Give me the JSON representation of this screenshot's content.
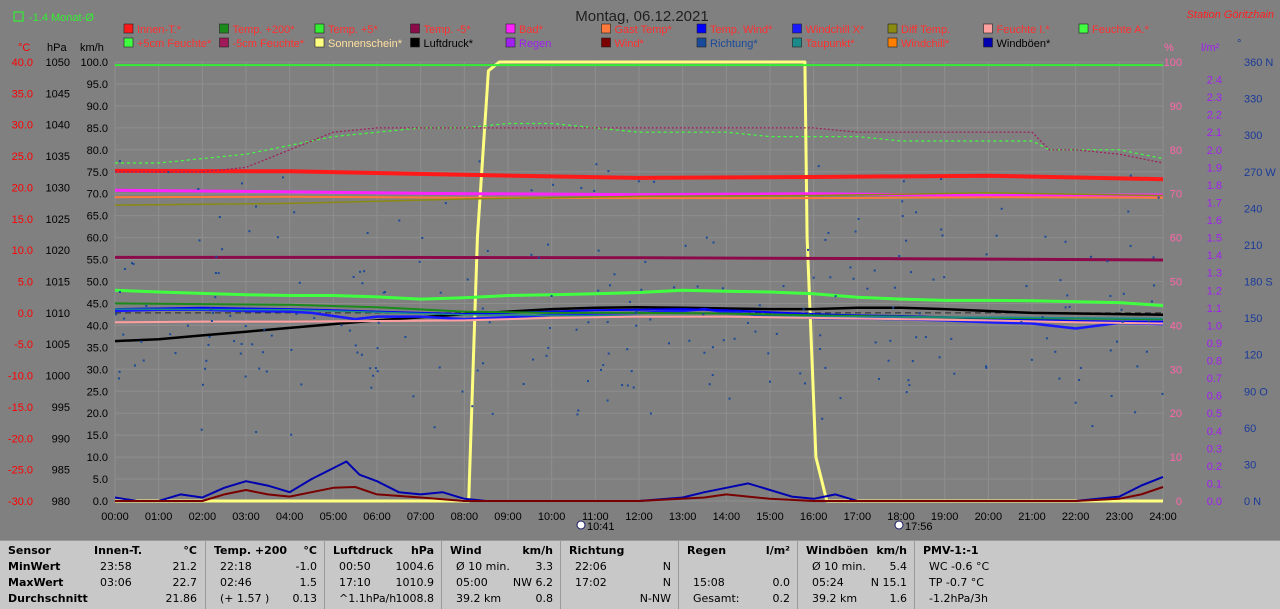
{
  "header": {
    "title": "Montag, 06.12.2021",
    "station": "Station Göritzhain",
    "monat_label": "-1.4 Monat-Ø"
  },
  "colors": {
    "background": "#808080",
    "innen": "#ff1a1a",
    "temp200": "#1a8a1a",
    "temp5": "#33ee33",
    "temp_minus5": "#8a0a4a",
    "bad": "#ff22ff",
    "gast": "#ff7a3a",
    "tempwind": "#0000ff",
    "windchillx": "#1a1aff",
    "difftemp": "#8a8a10",
    "feuchte_i": "#ffa0a0",
    "feuchte_a": "#40ff40",
    "feuchte5": "#40ff40",
    "feuchte_minus5": "#a01a5a",
    "sonnenschein": "#ffff80",
    "luftdruck": "#000000",
    "regen": "#a020f0",
    "wind": "#7a0000",
    "richtung": "#1a4a9a",
    "taupunkt": "#1a8a8a",
    "windchill": "#ff8000",
    "windboeen": "#0000b0",
    "axis_temp": "#ff0000",
    "axis_pct": "#ff66aa",
    "axis_rain": "#a020f0",
    "axis_dir": "#1a3a9a"
  },
  "legend": [
    [
      "Innen-T.*",
      "Temp. +200*",
      "Temp. +5*",
      "Temp. -5*",
      "Bad*",
      "Gast Temp*",
      "Temp. Wind*",
      "Windchill X*",
      "Diff Temp.",
      "Feuchte I.*",
      "Feuchte A.*"
    ],
    [
      "+5cm Feuchte*",
      "-5cm Feuchte*",
      "Sonnenschein*",
      "Luftdruck*",
      "Regen",
      "Wind*",
      "Richtung*",
      "Taupunkt*",
      "Windchill*",
      "Windböen*"
    ]
  ],
  "axes": {
    "left_units": [
      "°C",
      "hPa",
      "km/h"
    ],
    "right_units": [
      "%",
      "l/m²",
      "°"
    ]
  },
  "events": {
    "sunrise": "10:41",
    "sunset": "17:56"
  },
  "chart_data": {
    "type": "line",
    "title": "Montag, 06.12.2021",
    "x_ticks": [
      "00:00",
      "01:00",
      "02:00",
      "03:00",
      "04:00",
      "05:00",
      "06:00",
      "07:00",
      "08:00",
      "09:00",
      "10:00",
      "11:00",
      "12:00",
      "13:00",
      "14:00",
      "15:00",
      "16:00",
      "17:00",
      "18:00",
      "19:00",
      "20:00",
      "21:00",
      "22:00",
      "23:00",
      "24:00"
    ],
    "axes": {
      "temp_c": {
        "min": -30.0,
        "max": 40.0,
        "ticks": [
          "40.0",
          "35.0",
          "30.0",
          "25.0",
          "20.0",
          "15.0",
          "10.0",
          "5.0",
          "0.0",
          "-5.0",
          "-10.0",
          "-15.0",
          "-20.0",
          "-25.0",
          "-30.0"
        ]
      },
      "press_hpa": {
        "min": 980,
        "max": 1050,
        "ticks": [
          "1050",
          "1045",
          "1040",
          "1035",
          "1030",
          "1025",
          "1020",
          "1015",
          "1010",
          "1005",
          "1000",
          "995",
          "990",
          "985",
          "980"
        ]
      },
      "wind_kmh": {
        "min": 0.0,
        "max": 100.0,
        "ticks": [
          "100.0",
          "95.0",
          "90.0",
          "85.0",
          "80.0",
          "75.0",
          "70.0",
          "65.0",
          "60.0",
          "55.0",
          "50.0",
          "45.0",
          "40.0",
          "35.0",
          "30.0",
          "25.0",
          "20.0",
          "15.0",
          "10.0",
          "5.0",
          "0.0"
        ]
      },
      "pct": {
        "min": 0,
        "max": 100,
        "ticks": [
          "100",
          "90",
          "80",
          "70",
          "60",
          "50",
          "40",
          "30",
          "20",
          "10",
          "0"
        ]
      },
      "rain_lm2": {
        "min": 0.0,
        "max": 2.5,
        "ticks": [
          "2.4",
          "2.3",
          "2.2",
          "2.1",
          "2.0",
          "1.9",
          "1.8",
          "1.7",
          "1.6",
          "1.5",
          "1.4",
          "1.3",
          "1.2",
          "1.1",
          "1.0",
          "0.9",
          "0.8",
          "0.7",
          "0.6",
          "0.5",
          "0.4",
          "0.3",
          "0.2",
          "0.1",
          "0.0"
        ]
      },
      "dir_deg": {
        "min": 0,
        "max": 360,
        "ticks": [
          "360 N",
          "330",
          "300",
          "270 W",
          "240",
          "210",
          "180 S",
          "150",
          "120",
          "90 O",
          "60",
          "30",
          "0 N"
        ]
      }
    },
    "series": [
      {
        "name": "Sonnenschein*",
        "axis": "pct",
        "x": [
          0,
          8.1,
          8.3,
          8.55,
          8.8,
          15.8,
          15.85,
          16.05,
          16.3,
          24
        ],
        "y": [
          0,
          0,
          60,
          98,
          100,
          100,
          60,
          10,
          0,
          0
        ]
      },
      {
        "name": "Temp. +5*",
        "axis": "temp_c",
        "x": [
          0,
          8,
          9,
          15,
          16,
          24
        ],
        "y": [
          39.5,
          39.5,
          39.5,
          39.5,
          39.5,
          39.5
        ]
      },
      {
        "name": "Innen-T.*",
        "axis": "wind_kmh",
        "x": [
          0,
          4,
          8,
          12,
          16,
          20,
          24
        ],
        "y": [
          75.2,
          75.1,
          74.3,
          73.6,
          73.8,
          74.1,
          73.3
        ]
      },
      {
        "name": "Bad*",
        "axis": "wind_kmh",
        "x": [
          0,
          4,
          8,
          12,
          16,
          20,
          24
        ],
        "y": [
          70.8,
          70.4,
          70.0,
          69.8,
          70.0,
          69.6,
          69.7
        ]
      },
      {
        "name": "Gast Temp*",
        "axis": "wind_kmh",
        "x": [
          0,
          4,
          8,
          12,
          16,
          20,
          24
        ],
        "y": [
          69.2,
          69.3,
          69.1,
          69.0,
          69.0,
          69.2,
          69.1
        ]
      },
      {
        "name": "Diff Temp.",
        "axis": "wind_kmh",
        "x": [
          0,
          4,
          8,
          12,
          16,
          20,
          24
        ],
        "y": [
          67.4,
          67.8,
          68.8,
          69.4,
          69.6,
          70.2,
          69.6
        ]
      },
      {
        "name": "Temp. -5*",
        "axis": "wind_kmh",
        "x": [
          0,
          6,
          12,
          18,
          24
        ],
        "y": [
          55.5,
          55.5,
          55.4,
          55.2,
          54.9
        ]
      },
      {
        "name": "+5cm Feuchte*",
        "axis": "wind_kmh",
        "x": [
          0,
          1,
          2,
          3,
          4,
          5,
          6,
          7,
          8,
          9,
          10,
          11,
          12,
          13,
          14,
          15,
          16,
          17,
          18,
          19,
          20,
          21,
          22,
          23,
          24
        ],
        "y": [
          48.0,
          47.6,
          47.3,
          47.0,
          46.8,
          46.8,
          46.5,
          46.0,
          46.3,
          46.8,
          47.0,
          47.2,
          47.5,
          48.0,
          47.8,
          47.6,
          47.2,
          46.4,
          46.0,
          45.7,
          45.7,
          45.6,
          45.4,
          45.2,
          44.5
        ]
      },
      {
        "name": "Luftdruck*",
        "axis": "press_hpa",
        "x": [
          0,
          1,
          2,
          3,
          4,
          5,
          6,
          7,
          8,
          9,
          10,
          11,
          12,
          13,
          14,
          15,
          16,
          17,
          18,
          19,
          20,
          21,
          22,
          23,
          24
        ],
        "y": [
          1005.5,
          1005.8,
          1006.4,
          1007.0,
          1007.6,
          1008.2,
          1008.8,
          1009.3,
          1009.8,
          1010.2,
          1010.6,
          1010.8,
          1010.9,
          1010.8,
          1010.7,
          1010.6,
          1010.6,
          1010.8,
          1010.8,
          1010.6,
          1010.3,
          1010.0,
          1009.9,
          1009.8,
          1009.7
        ]
      },
      {
        "name": "Feuchte A.*",
        "axis": "pct",
        "x": [
          0,
          1,
          2,
          3,
          4,
          5,
          6,
          7,
          8,
          9,
          10,
          11,
          12,
          13,
          14,
          15,
          16,
          17,
          18,
          19,
          20,
          21,
          21.4,
          22,
          23,
          24
        ],
        "y": [
          77,
          77,
          78,
          79,
          81,
          83,
          84,
          85,
          85,
          86,
          86,
          85,
          84,
          84,
          84,
          83,
          83,
          83,
          82,
          82,
          82,
          82,
          80,
          80,
          80,
          78
        ]
      },
      {
        "name": "-5cm Feuchte*",
        "axis": "pct",
        "x": [
          0,
          1,
          2,
          3,
          4,
          5,
          6,
          7,
          8,
          9,
          10,
          11,
          12,
          13,
          14,
          15,
          16,
          17,
          18,
          19,
          20,
          21,
          21.4,
          22,
          23,
          24
        ],
        "y": [
          75,
          75,
          75,
          76,
          80,
          84,
          85,
          85,
          85,
          85,
          85,
          85,
          85,
          85,
          85,
          85,
          85,
          84,
          84,
          84,
          84,
          84,
          80,
          80,
          79,
          77
        ]
      },
      {
        "name": "Windchill X*",
        "axis": "temp_c",
        "x": [
          0,
          1,
          2,
          3,
          4,
          4.5,
          5,
          5.5,
          6,
          7,
          8,
          9,
          10,
          11,
          12,
          13,
          13.5,
          14,
          15,
          16,
          17,
          18,
          19,
          20,
          21,
          22,
          23,
          24
        ],
        "y": [
          0.3,
          0.5,
          0.5,
          0.3,
          0.2,
          0.0,
          -0.5,
          -1.0,
          -0.6,
          -0.6,
          -1.0,
          -0.7,
          -0.3,
          -0.1,
          0.0,
          0.3,
          0.6,
          0.1,
          -0.4,
          -0.8,
          -0.9,
          -1.0,
          -1.2,
          -1.5,
          -1.7,
          -2.5,
          -1.6,
          -1.8
        ]
      },
      {
        "name": "Temp. Wind*",
        "axis": "temp_c",
        "x": [
          0,
          1,
          2,
          3,
          4,
          5,
          6,
          7,
          8,
          9,
          10,
          11,
          12,
          13,
          14,
          15,
          16,
          17,
          18,
          19,
          20,
          21,
          22,
          23,
          24
        ],
        "y": [
          0.6,
          0.7,
          0.8,
          0.7,
          0.6,
          0.4,
          0.2,
          0.0,
          -0.2,
          0.0,
          0.2,
          0.4,
          0.5,
          0.6,
          0.4,
          0.1,
          -0.2,
          -0.4,
          -0.5,
          -0.7,
          -0.9,
          -1.1,
          -1.3,
          -1.4,
          -1.4
        ]
      },
      {
        "name": "Temp. +200*",
        "axis": "temp_c",
        "x": [
          0,
          2,
          4,
          5,
          6,
          8,
          10,
          12,
          14,
          16,
          18,
          20,
          22,
          24
        ],
        "y": [
          1.5,
          1.4,
          1.3,
          1.1,
          0.9,
          0.2,
          0.0,
          0.0,
          -0.1,
          -0.4,
          -0.6,
          -0.8,
          -0.9,
          -1.0
        ]
      },
      {
        "name": "Taupunkt*",
        "axis": "temp_c",
        "x": [
          0,
          4,
          8,
          12,
          16,
          20,
          24
        ],
        "y": [
          0.6,
          0.5,
          -0.3,
          -0.5,
          -0.6,
          -0.7,
          -0.9
        ]
      },
      {
        "name": "Feuchte I.*",
        "axis": "temp_c",
        "x": [
          0,
          2,
          4,
          6,
          8,
          10,
          12,
          14,
          16,
          18,
          20,
          22,
          24
        ],
        "y": [
          -1.5,
          -1.4,
          -1.4,
          -1.3,
          -1.2,
          -0.8,
          -0.6,
          -0.6,
          -0.8,
          -1.0,
          -1.2,
          -1.5,
          -1.7
        ]
      },
      {
        "name": "Windböen*",
        "axis": "wind_kmh",
        "x": [
          0,
          0.5,
          1,
          1.5,
          2,
          2.5,
          3,
          3.5,
          4,
          4.5,
          5,
          5.3,
          5.6,
          6,
          6.5,
          7,
          7.5,
          8,
          8.5,
          9,
          9.5,
          10,
          11,
          12,
          13,
          13.5,
          14,
          14.5,
          15,
          15.5,
          16,
          16.5,
          17,
          18,
          19,
          20,
          21,
          22,
          22.5,
          23,
          23.5,
          24
        ],
        "y": [
          0.8,
          0,
          0,
          1.5,
          0.8,
          3.0,
          4.5,
          3.5,
          2.0,
          5.0,
          7.5,
          9.0,
          6.0,
          4.5,
          2.0,
          1.5,
          2.0,
          0.5,
          0,
          0,
          0,
          0,
          0,
          0,
          0.8,
          2.0,
          3.0,
          4.0,
          2.5,
          1.0,
          0.5,
          1.5,
          0,
          0,
          0,
          0,
          0,
          0,
          0.5,
          1.0,
          3.5,
          5.5
        ]
      },
      {
        "name": "Wind*",
        "axis": "wind_kmh",
        "x": [
          0,
          1,
          2,
          2.5,
          3,
          3.5,
          4,
          4.5,
          5,
          5.5,
          6,
          7,
          8,
          9,
          10,
          12,
          13.5,
          14,
          14.5,
          15,
          16,
          17,
          20,
          22,
          23,
          23.5,
          24
        ],
        "y": [
          0,
          0,
          0,
          1.5,
          2.5,
          1.5,
          1.0,
          2.0,
          3.0,
          3.2,
          1.5,
          0.8,
          0,
          0,
          0,
          0,
          0.8,
          1.5,
          1.0,
          0.5,
          0,
          0,
          0,
          0,
          0.5,
          1.5,
          3.2
        ]
      }
    ],
    "scatter": {
      "name": "Richtung*",
      "axis": "dir_deg",
      "x_range": [
        0,
        24
      ]
    }
  },
  "summary": {
    "labels": {
      "title": "Sensor",
      "rows": [
        "MinWert",
        "MaxWert",
        "Durchschnitt"
      ]
    },
    "cols": [
      {
        "title": "Innen-T.",
        "unit": "°C",
        "rows": [
          [
            "23:58",
            "21.2"
          ],
          [
            "03:06",
            "22.7"
          ],
          [
            "",
            "21.86"
          ]
        ]
      },
      {
        "title": "Temp. +200",
        "unit": "°C",
        "rows": [
          [
            "22:18",
            "-1.0"
          ],
          [
            "02:46",
            "1.5"
          ],
          [
            "(+ 1.57 )",
            "0.13"
          ]
        ]
      },
      {
        "title": "Luftdruck",
        "unit": "hPa",
        "rows": [
          [
            "00:50",
            "1004.6"
          ],
          [
            "17:10",
            "1010.9"
          ],
          [
            "^1.1hPa/h",
            "1008.8"
          ]
        ]
      },
      {
        "title": "Wind",
        "unit": "km/h",
        "rows": [
          [
            "Ø 10 min.",
            "3.3"
          ],
          [
            "05:00",
            "NW 6.2"
          ],
          [
            "39.2 km",
            "0.8"
          ]
        ]
      },
      {
        "title": "Richtung",
        "unit": "",
        "rows": [
          [
            "22:06",
            "N"
          ],
          [
            "17:02",
            "N"
          ],
          [
            "",
            "N-NW"
          ]
        ]
      },
      {
        "title": "Regen",
        "unit": "l/m²",
        "rows": [
          [
            "",
            ""
          ],
          [
            "15:08",
            "0.0"
          ],
          [
            "Gesamt:",
            "0.2"
          ]
        ]
      },
      {
        "title": "Windböen",
        "unit": "km/h",
        "rows": [
          [
            "Ø 10 min.",
            "5.4"
          ],
          [
            "05:24",
            "N 15.1"
          ],
          [
            "39.2 km",
            "1.6"
          ]
        ]
      },
      {
        "title": "PMV-1:-1",
        "unit": "",
        "rows": [
          [
            "WC -0.6 °C",
            ""
          ],
          [
            "TP -0.7 °C",
            ""
          ],
          [
            "-1.2hPa/3h",
            ""
          ]
        ]
      }
    ]
  }
}
